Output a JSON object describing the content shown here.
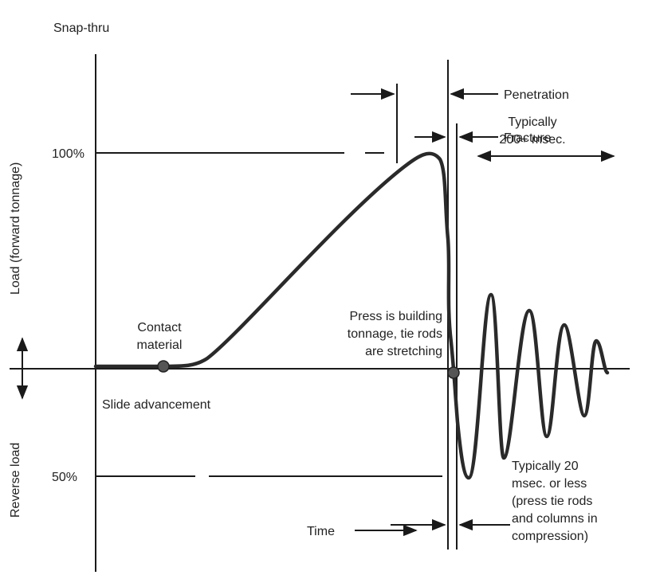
{
  "title": "Snap-thru",
  "y_label_top": "Load (forward tonnage)",
  "y_label_bottom": "Reverse load",
  "level_100": "100%",
  "level_50": "50%",
  "penetration": "Penetration",
  "fracture": "Fracture",
  "typically_200": [
    "Typically",
    "200+ msec."
  ],
  "contact": [
    "Contact",
    "material"
  ],
  "building": [
    "Press is building",
    "tonnage, tie rods",
    "are stretching"
  ],
  "slide": "Slide advancement",
  "typically_20": [
    "Typically 20",
    "msec. or less",
    "(press tie rods",
    "and columns in",
    "compression)"
  ],
  "time": "Time"
}
